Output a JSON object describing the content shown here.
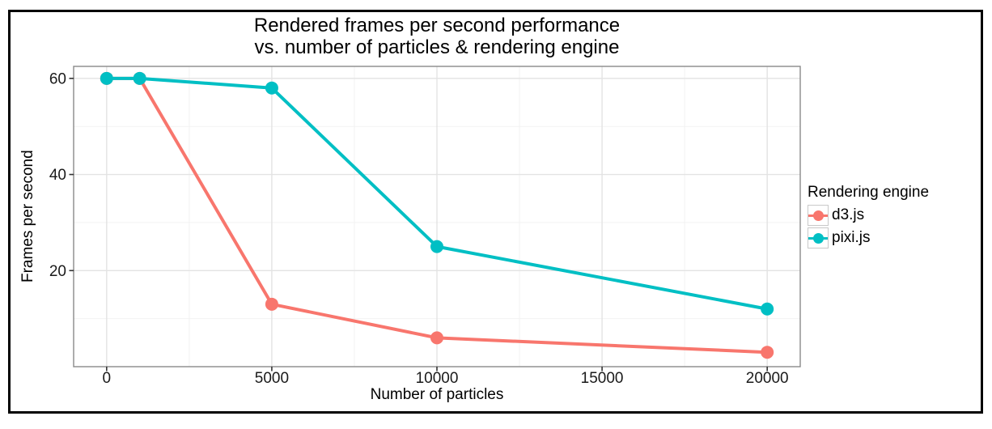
{
  "figure": {
    "title_line1": "Rendered frames per second performance",
    "title_line2": "vs. number of particles & rendering engine"
  },
  "chart_data": {
    "type": "line",
    "title": "Rendered frames per second performance vs. number of particles & rendering engine",
    "xlabel": "Number of particles",
    "ylabel": "Frames per second",
    "legend_title": "Rendering engine",
    "legend_position": "right",
    "grid": true,
    "xlim": [
      -1000,
      21000
    ],
    "ylim": [
      0,
      62.5
    ],
    "x_ticks": [
      0,
      5000,
      10000,
      15000,
      20000
    ],
    "y_ticks": [
      20,
      40,
      60
    ],
    "x_minor_gridlines": [
      2500,
      7500,
      12500,
      17500
    ],
    "y_minor_gridlines": [
      10,
      30,
      50
    ],
    "colors": {
      "panel_border": "#8A8A8A",
      "major_gridline": "#E3E3E3",
      "minor_gridline": "#F2F2F2",
      "tick_mark": "#333333",
      "tick_label": "#1A1A1A"
    },
    "series": [
      {
        "name": "d3.js",
        "color": "#F8766D",
        "x": [
          0,
          1000,
          5000,
          10000,
          20000
        ],
        "y": [
          60,
          60,
          13,
          6,
          3
        ]
      },
      {
        "name": "pixi.js",
        "color": "#00BFC4",
        "x": [
          0,
          1000,
          5000,
          10000,
          20000
        ],
        "y": [
          60,
          60,
          58,
          25,
          12
        ]
      }
    ]
  }
}
